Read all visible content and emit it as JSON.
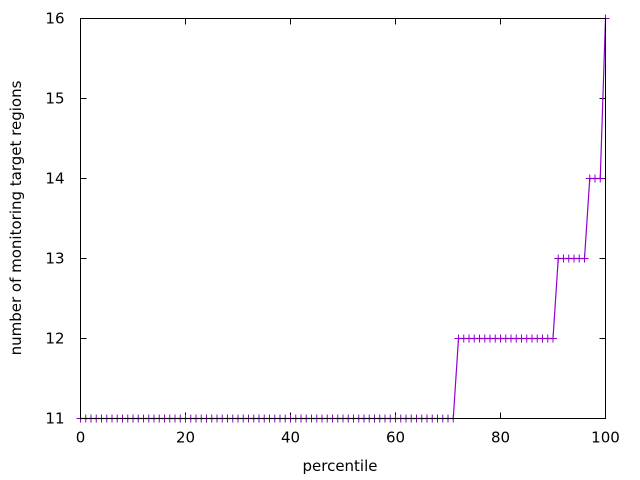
{
  "chart_data": {
    "type": "line",
    "title": "",
    "xlabel": "percentile",
    "ylabel": "number of monitoring target regions",
    "xlim": [
      0,
      100
    ],
    "ylim": [
      11,
      16
    ],
    "xticks": [
      "0",
      "20",
      "40",
      "60",
      "80",
      "100"
    ],
    "yticks": [
      "11",
      "12",
      "13",
      "14",
      "15",
      "16"
    ],
    "grid": false,
    "marker": "plus",
    "series_color": "#9400d3",
    "steps": [
      {
        "x_from": 0,
        "x_to": 71,
        "y": 11
      },
      {
        "x_from": 72,
        "x_to": 90,
        "y": 12
      },
      {
        "x_from": 91,
        "x_to": 96,
        "y": 13
      },
      {
        "x_from": 97,
        "x_to": 99,
        "y": 14
      },
      {
        "x_from": 100,
        "x_to": 100,
        "y": 16
      }
    ]
  }
}
